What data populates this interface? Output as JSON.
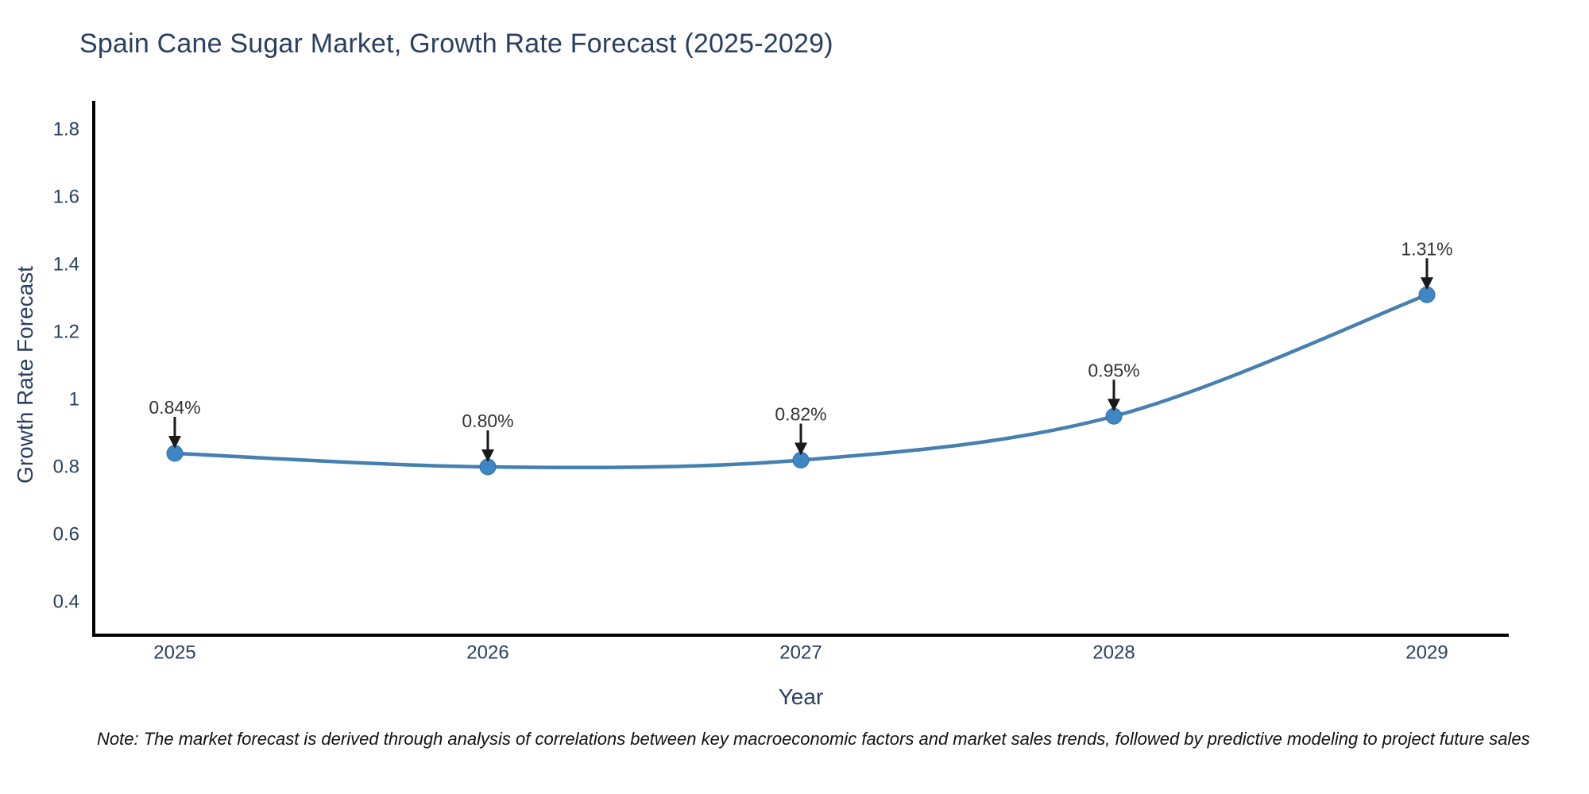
{
  "title": "Spain Cane Sugar Market, Growth Rate Forecast (2025-2029)",
  "note": "Note: The market forecast is derived through analysis of correlations between key macroeconomic factors and market sales trends, followed by predictive modeling to project future sales",
  "chart_data": {
    "type": "line",
    "title": "Spain Cane Sugar Market, Growth Rate Forecast (2025-2029)",
    "x": [
      "2025",
      "2026",
      "2027",
      "2028",
      "2029"
    ],
    "values": [
      0.84,
      0.8,
      0.82,
      0.95,
      1.31
    ],
    "point_labels": [
      "0.84%",
      "0.80%",
      "0.82%",
      "0.95%",
      "1.31%"
    ],
    "xlabel": "Year",
    "ylabel": "Growth Rate Forecast",
    "yticks": [
      1.8,
      1.6,
      1.4,
      1.2,
      1,
      0.8,
      0.6,
      0.4
    ],
    "ylim": [
      0.3,
      1.88
    ],
    "grid": false,
    "legend": "none",
    "line_shape": "spline",
    "colors": {
      "line": "#4580b0",
      "marker": "#3f86c4",
      "axis_line": "#000000",
      "text": "#2a3f5f",
      "annotation": "#333333",
      "arrow": "#1a1a1a"
    }
  }
}
